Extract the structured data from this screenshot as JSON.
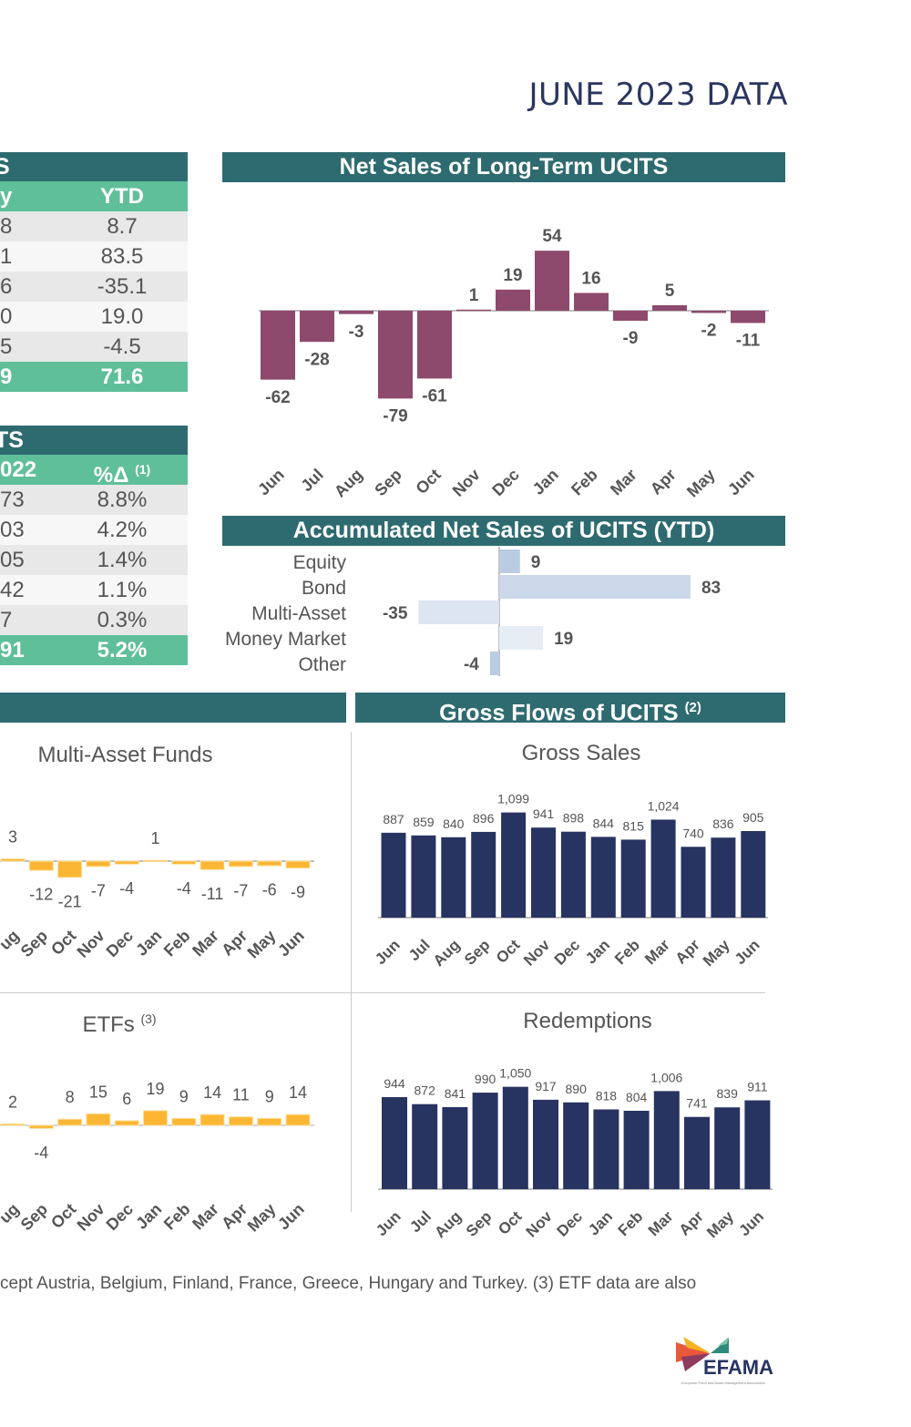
{
  "page_title": "JUNE 2023 DATA",
  "table1": {
    "header": "S",
    "columns": [
      "y",
      "YTD"
    ],
    "rows": [
      [
        "8",
        "8.7"
      ],
      [
        "1",
        "83.5"
      ],
      [
        "6",
        "-35.1"
      ],
      [
        "0",
        "19.0"
      ],
      [
        "5",
        "-4.5"
      ]
    ],
    "total": [
      "9",
      "71.6"
    ]
  },
  "table2": {
    "header": "TS",
    "columns": [
      "022",
      "%Δ",
      "(1)"
    ],
    "rows": [
      [
        "73",
        "8.8%"
      ],
      [
        "03",
        "4.2%"
      ],
      [
        "05",
        "1.4%"
      ],
      [
        "42",
        "1.1%"
      ],
      [
        "7",
        "0.3%"
      ]
    ],
    "total": [
      "91",
      "5.2%"
    ]
  },
  "section_headers": {
    "net_sales": "Net Sales of Long-Term UCITS",
    "accumulated": "Accumulated Net Sales of UCITS (YTD)",
    "gross_flows": "Gross Flows of UCITS",
    "gross_flows_note": "(2)"
  },
  "colors": {
    "teal_header": "#2e6b70",
    "green_subheader": "#5fbf99",
    "net_sales_bar": "#8e4a6c",
    "amber_bar": "#fbb634",
    "navy_bar": "#273361",
    "title": "#2a3560"
  },
  "chart_data": [
    {
      "id": "net_sales",
      "type": "bar",
      "title": "Net Sales of Long-Term UCITS",
      "categories": [
        "Jun",
        "Jul",
        "Aug",
        "Sep",
        "Oct",
        "Nov",
        "Dec",
        "Jan",
        "Feb",
        "Mar",
        "Apr",
        "May",
        "Jun"
      ],
      "values": [
        -62,
        -28,
        -3,
        -79,
        -61,
        1,
        19,
        54,
        16,
        -9,
        5,
        -2,
        -11
      ],
      "color": "#8e4a6c"
    },
    {
      "id": "accumulated",
      "type": "bar",
      "orientation": "horizontal",
      "title": "Accumulated Net Sales of UCITS (YTD)",
      "categories": [
        "Equity",
        "Bond",
        "Multi-Asset",
        "Money Market",
        "Other"
      ],
      "values": [
        9,
        83,
        -35,
        19,
        -4
      ],
      "colors": [
        "#b9cce1",
        "#cbd9ea",
        "#dce5f0",
        "#e6edf5",
        "#b9cce1"
      ]
    },
    {
      "id": "multi_asset",
      "type": "bar",
      "title": "Multi-Asset Funds",
      "categories": [
        "Aug",
        "Sep",
        "Oct",
        "Nov",
        "Dec",
        "Jan",
        "Feb",
        "Mar",
        "Apr",
        "May",
        "Jun"
      ],
      "tick_labels_visible": [
        "ug",
        "Sep",
        "Oct",
        "Nov",
        "Dec",
        "Jan",
        "Feb",
        "Mar",
        "Apr",
        "May",
        "Jun"
      ],
      "values": [
        3,
        -12,
        -21,
        -7,
        -4,
        1,
        -4,
        -11,
        -7,
        -6,
        -9
      ],
      "color": "#fbb634"
    },
    {
      "id": "etfs",
      "type": "bar",
      "title": "ETFs",
      "title_note": "(3)",
      "categories": [
        "Aug",
        "Sep",
        "Oct",
        "Nov",
        "Dec",
        "Jan",
        "Feb",
        "Mar",
        "Apr",
        "May",
        "Jun"
      ],
      "tick_labels_visible": [
        "ug",
        "Sep",
        "Oct",
        "Nov",
        "Dec",
        "Jan",
        "Feb",
        "Mar",
        "Apr",
        "May",
        "Jun"
      ],
      "values": [
        2,
        -4,
        8,
        15,
        6,
        19,
        9,
        14,
        11,
        9,
        14
      ],
      "color": "#fbb634"
    },
    {
      "id": "gross_sales",
      "type": "bar",
      "title": "Gross Sales",
      "categories": [
        "Jun",
        "Jul",
        "Aug",
        "Sep",
        "Oct",
        "Nov",
        "Dec",
        "Jan",
        "Feb",
        "Mar",
        "Apr",
        "May",
        "Jun"
      ],
      "values": [
        887,
        859,
        840,
        896,
        1099,
        941,
        898,
        844,
        815,
        1024,
        740,
        836,
        905
      ],
      "value_labels": [
        "887",
        "859",
        "840",
        "896",
        "1,099",
        "941",
        "898",
        "844",
        "815",
        "1,024",
        "740",
        "836",
        "905"
      ],
      "color": "#273361"
    },
    {
      "id": "redemptions",
      "type": "bar",
      "title": "Redemptions",
      "categories": [
        "Jun",
        "Jul",
        "Aug",
        "Sep",
        "Oct",
        "Nov",
        "Dec",
        "Jan",
        "Feb",
        "Mar",
        "Apr",
        "May",
        "Jun"
      ],
      "values": [
        944,
        872,
        841,
        990,
        1050,
        917,
        890,
        818,
        804,
        1006,
        741,
        839,
        911
      ],
      "value_labels": [
        "944",
        "872",
        "841",
        "990",
        "1,050",
        "917",
        "890",
        "818",
        "804",
        "1,006",
        "741",
        "839",
        "911"
      ],
      "color": "#273361"
    }
  ],
  "footnote": "cept Austria, Belgium, Finland, France, Greece, Hungary and Turkey. (3) ETF data are also",
  "logo": {
    "name": "EFAMA",
    "tagline": "European Fund and Asset Management Association"
  }
}
